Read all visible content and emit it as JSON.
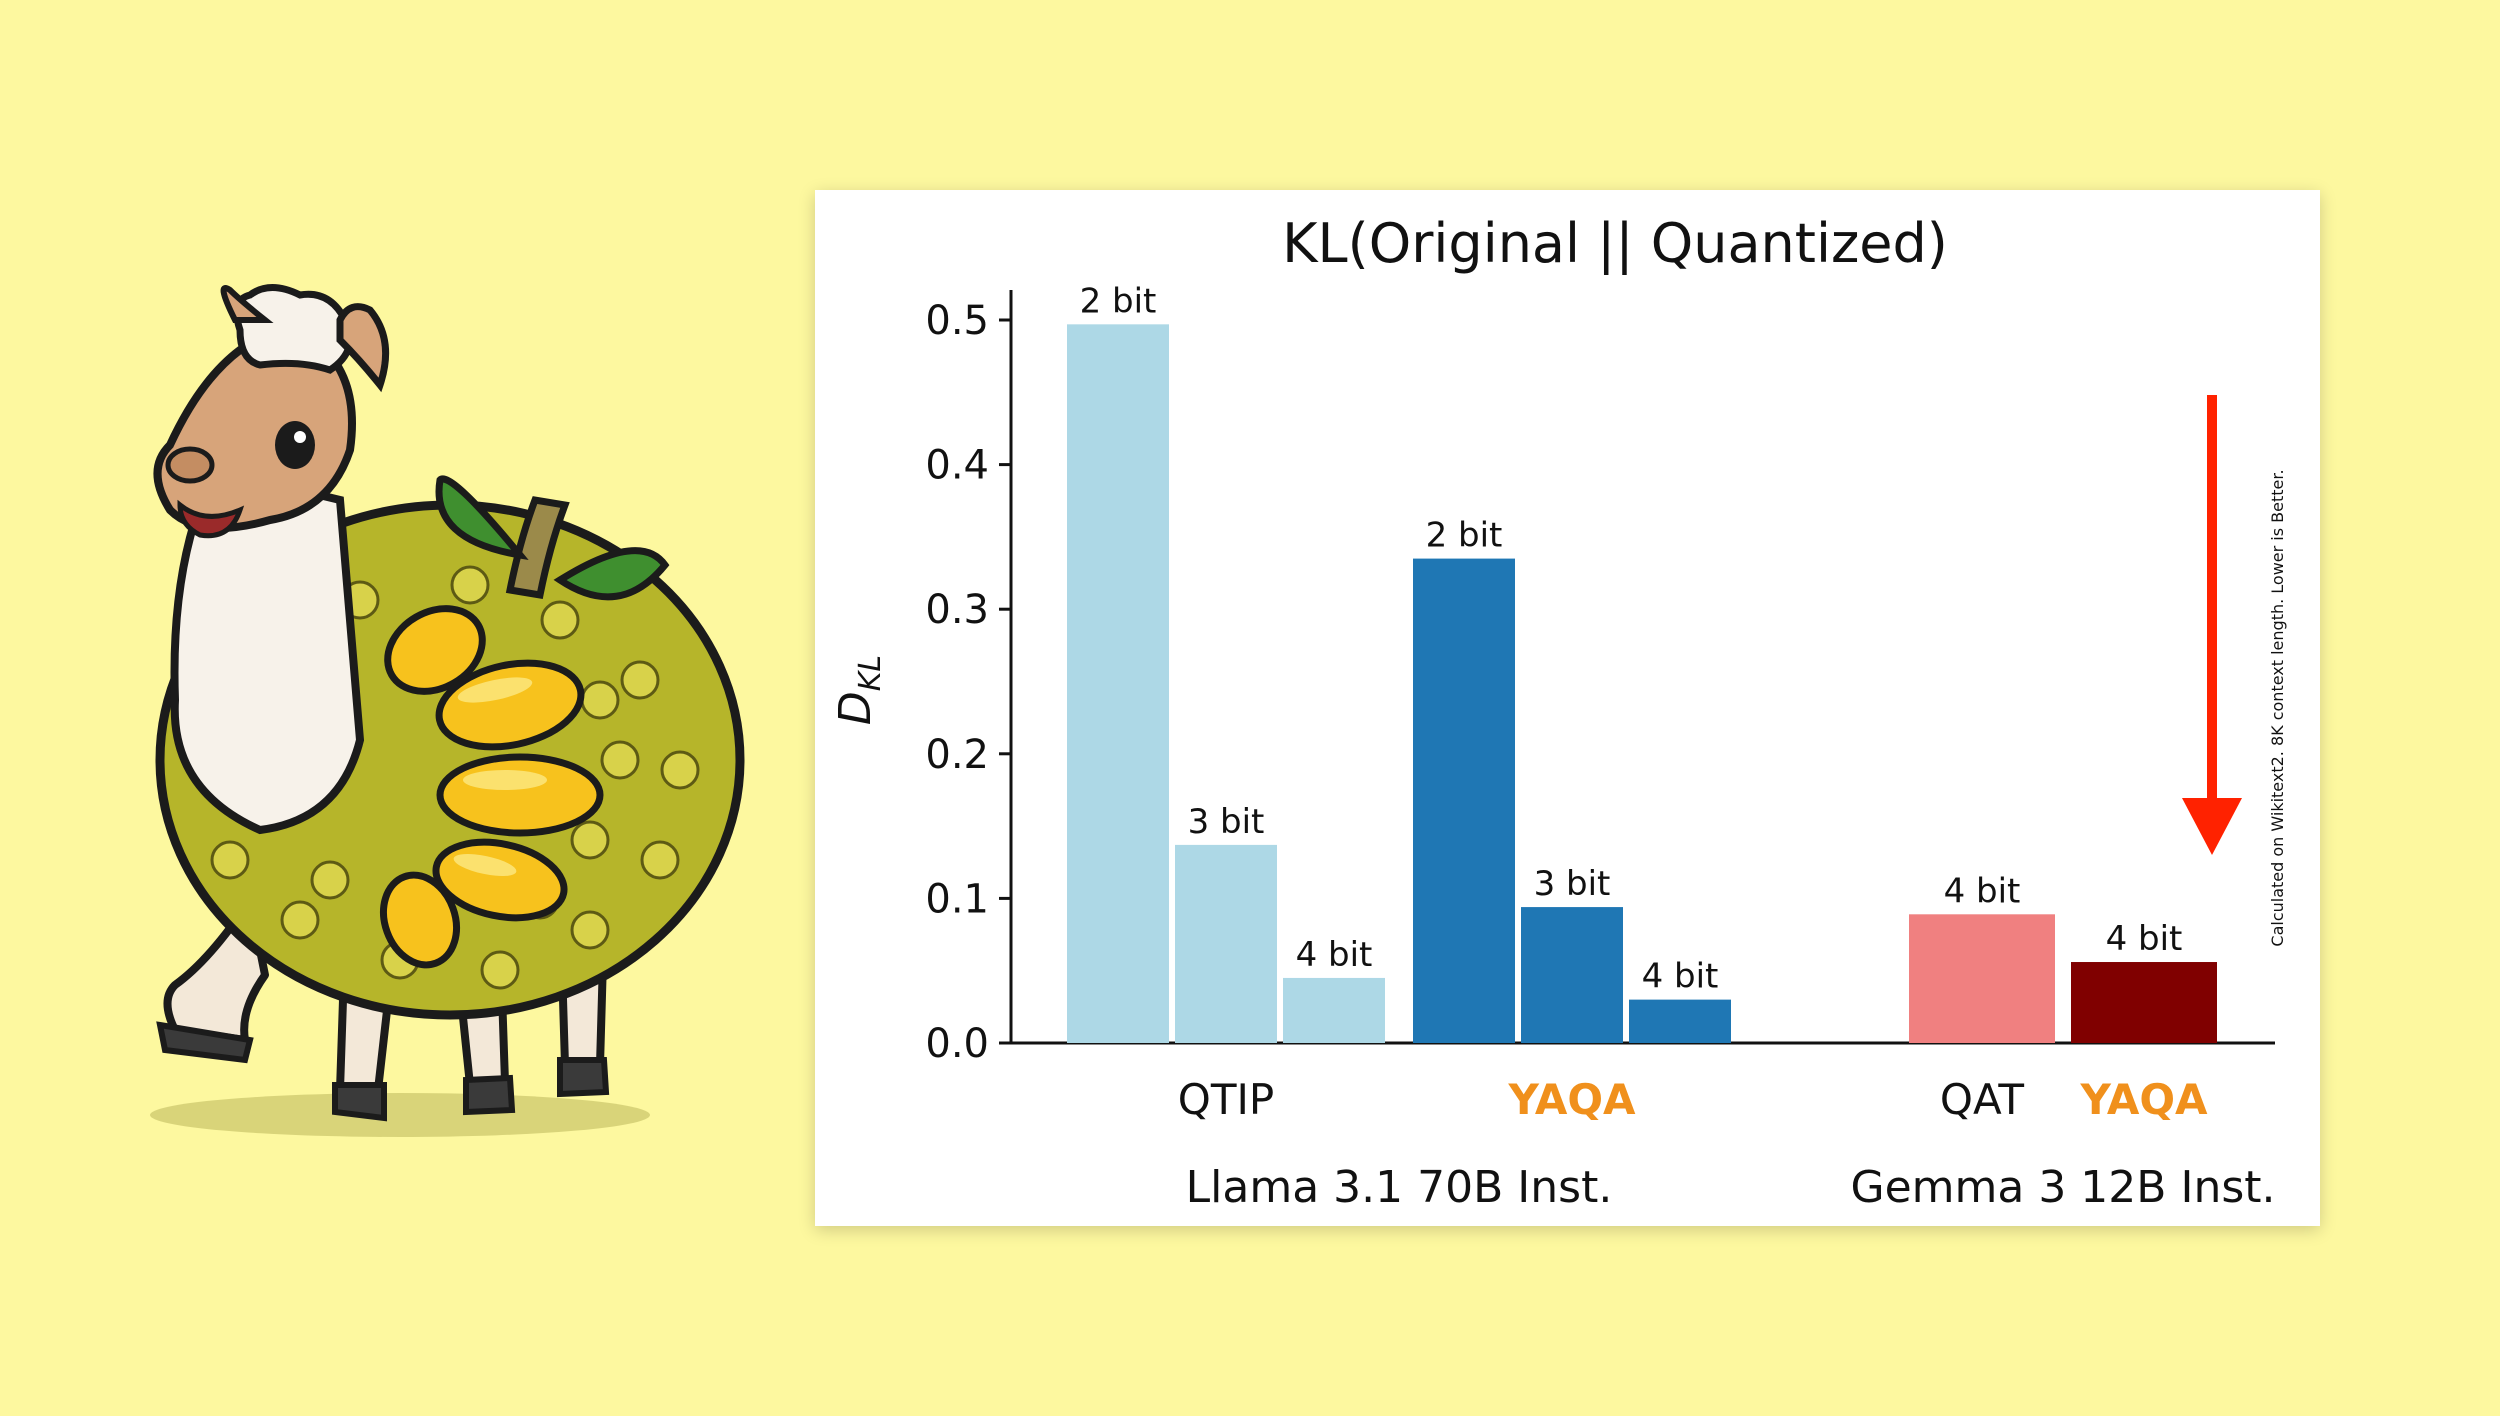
{
  "colors": {
    "background": "#fdf89f",
    "qtip": "#add8e6",
    "yaqa_llama": "#1f77b4",
    "qat": "#f08080",
    "yaqa_gemma": "#800000",
    "highlight_text": "#f0901c",
    "arrow": "#ff2200"
  },
  "mascot": {
    "icon": "llama-jackfruit-mascot-icon"
  },
  "chart_data": {
    "type": "bar",
    "title": "KL(Original || Quantized)",
    "ylabel_main": "D",
    "ylabel_sub": "KL",
    "ylim": [
      0,
      0.52
    ],
    "yticks": [
      "0.0",
      "0.1",
      "0.2",
      "0.3",
      "0.4",
      "0.5"
    ],
    "note": "Calculated on Wikitext2. 8K context length. Lower is Better.",
    "groups": [
      {
        "model": "Llama 3.1 70B Inst.",
        "methods": [
          {
            "name": "QTIP",
            "highlight": false,
            "color": "#add8e6",
            "bars": [
              {
                "label": "2 bit",
                "value": 0.497
              },
              {
                "label": "3 bit",
                "value": 0.137
              },
              {
                "label": "4 bit",
                "value": 0.045
              }
            ]
          },
          {
            "name": "YAQA",
            "highlight": true,
            "color": "#1f77b4",
            "bars": [
              {
                "label": "2 bit",
                "value": 0.335
              },
              {
                "label": "3 bit",
                "value": 0.094
              },
              {
                "label": "4 bit",
                "value": 0.03
              }
            ]
          }
        ]
      },
      {
        "model": "Gemma 3 12B Inst.",
        "methods": [
          {
            "name": "QAT",
            "highlight": false,
            "color": "#f08080",
            "bars": [
              {
                "label": "4 bit",
                "value": 0.089
              }
            ]
          },
          {
            "name": "YAQA",
            "highlight": true,
            "color": "#800000",
            "bars": [
              {
                "label": "4 bit",
                "value": 0.056
              }
            ]
          }
        ]
      }
    ]
  }
}
